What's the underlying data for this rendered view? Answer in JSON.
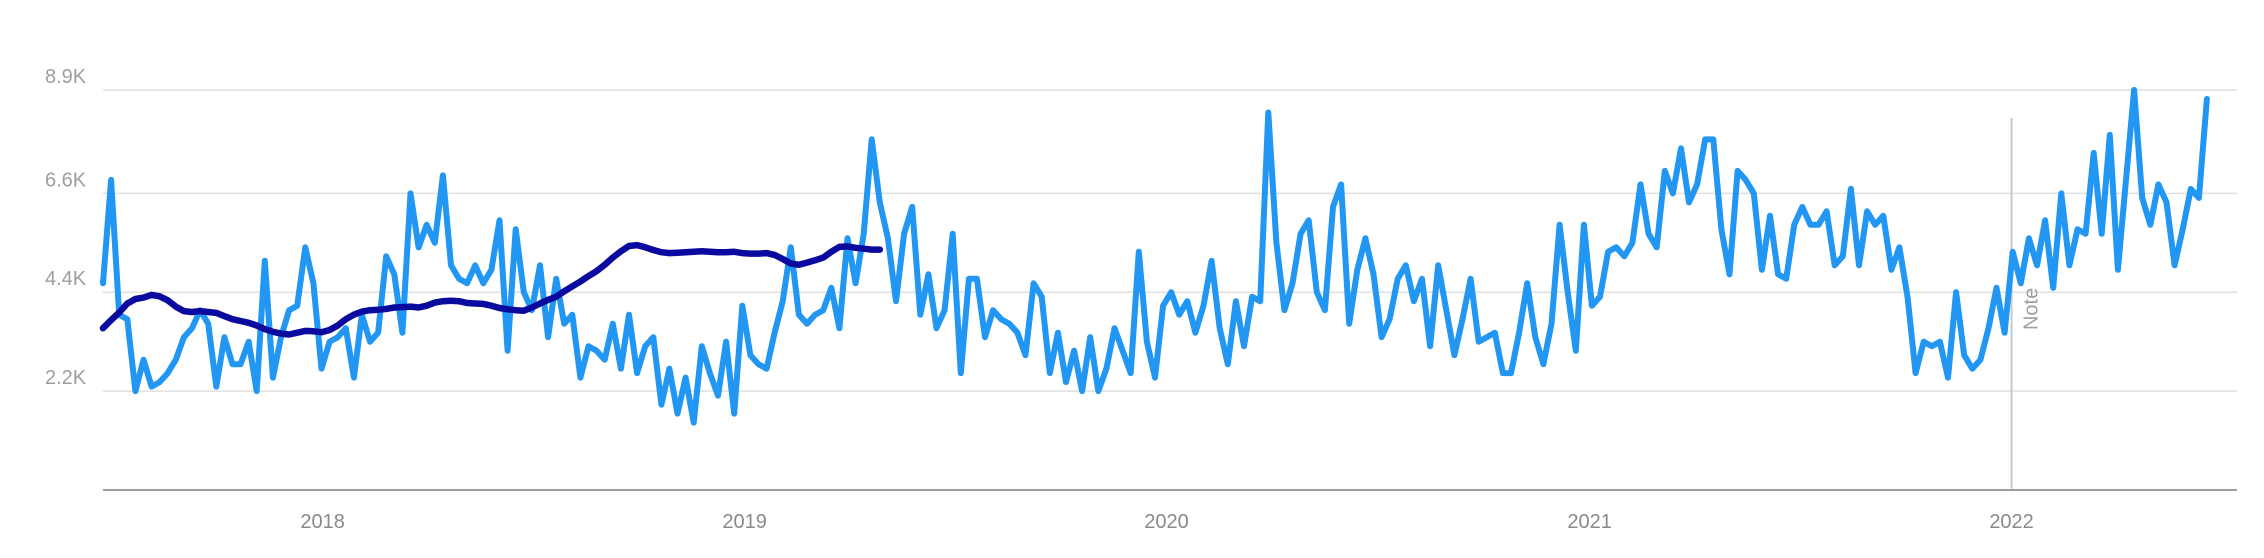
{
  "chart_data": {
    "type": "line",
    "title": "",
    "xlabel": "",
    "ylabel": "",
    "ylim": [
      0,
      8900
    ],
    "xlim": [
      "2017-06-25",
      "2022-07-15"
    ],
    "y_ticks": [
      {
        "value": 2200,
        "label": "2.2K"
      },
      {
        "value": 4400,
        "label": "4.4K"
      },
      {
        "value": 6600,
        "label": "6.6K"
      },
      {
        "value": 8900,
        "label": "8.9K"
      }
    ],
    "x_ticks": [
      {
        "date": "2018-01-01",
        "label": "2018"
      },
      {
        "date": "2019-01-01",
        "label": "2019"
      },
      {
        "date": "2020-01-01",
        "label": "2020"
      },
      {
        "date": "2021-01-01",
        "label": "2021"
      },
      {
        "date": "2022-01-01",
        "label": "2022"
      }
    ],
    "grid": true,
    "annotation": {
      "date": "2022-01-01",
      "label": "Note"
    },
    "colors": {
      "weekly": "#2196f3",
      "trend": "#0a0a9f",
      "grid": "#e0e0e0",
      "axis": "#9e9e9e"
    },
    "series": [
      {
        "color": "#2196f3",
        "start_date": "2017-06-25",
        "interval_days": 7,
        "values": [
          4600,
          6900,
          3900,
          3800,
          2200,
          2900,
          2300,
          2400,
          2600,
          2900,
          3400,
          3600,
          4000,
          3700,
          2300,
          3400,
          2800,
          2800,
          3300,
          2200,
          5100,
          2500,
          3400,
          4000,
          4100,
          5400,
          4600,
          2700,
          3300,
          3400,
          3600,
          2500,
          3900,
          3300,
          3500,
          5200,
          4800,
          3500,
          6600,
          5400,
          5900,
          5500,
          7000,
          5000,
          4700,
          4600,
          5000,
          4600,
          4900,
          6000,
          3100,
          5800,
          4400,
          4000,
          5000,
          3400,
          4700,
          3700,
          3900,
          2500,
          3200,
          3100,
          2900,
          3700,
          2700,
          3900,
          2600,
          3200,
          3400,
          1900,
          2700,
          1700,
          2500,
          1500,
          3200,
          2600,
          2100,
          3300,
          1700,
          4100,
          3000,
          2800,
          2700,
          3500,
          4200,
          5400,
          3900,
          3700,
          3900,
          4000,
          4500,
          3600,
          5600,
          4600,
          5700,
          7800,
          6400,
          5600,
          4200,
          5700,
          6300,
          3900,
          4800,
          3600,
          4000,
          5700,
          2600,
          4700,
          4700,
          3400,
          4000,
          3800,
          3700,
          3500,
          3000,
          4600,
          4300,
          2600,
          3500,
          2400,
          3100,
          2200,
          3400,
          2200,
          2700,
          3600,
          3100,
          2600,
          5300,
          3300,
          2500,
          4100,
          4400,
          3900,
          4200,
          3500,
          4100,
          5100,
          3600,
          2800,
          4200,
          3200,
          4300,
          4200,
          8400,
          5500,
          4000,
          4600,
          5700,
          6000,
          4400,
          4000,
          6300,
          6800,
          3700,
          4900,
          5600,
          4800,
          3400,
          3800,
          4700,
          5000,
          4200,
          4700,
          3200,
          5000,
          4000,
          3000,
          3800,
          4700,
          3300,
          3400,
          3500,
          2600,
          2600,
          3500,
          4600,
          3400,
          2800,
          3700,
          5900,
          4400,
          3100,
          5900,
          4100,
          4300,
          5300,
          5400,
          5200,
          5500,
          6800,
          5700,
          5400,
          7100,
          6600,
          7600,
          6400,
          6800,
          7800,
          7800,
          5800,
          4800,
          7100,
          6900,
          6600,
          4900,
          6100,
          4800,
          4700,
          5900,
          6300,
          5900,
          5900,
          6200,
          5000,
          5200,
          6700,
          5000,
          6200,
          5900,
          6100,
          4900,
          5400,
          4300,
          2600,
          3300,
          3200,
          3300,
          2500,
          4400,
          3000,
          2700,
          2900,
          3600,
          4500,
          3500,
          5300,
          4600,
          5600,
          5000,
          6000,
          4500,
          6600,
          5000,
          5800,
          5700,
          7500,
          5700,
          7900,
          4900,
          6900,
          8900,
          6500,
          5900,
          6800,
          6400,
          5000,
          5800,
          6700,
          6500,
          8700
        ]
      },
      {
        "color": "#0a0a9f",
        "start_date": "2017-06-25",
        "interval_days": 7,
        "values": [
          3600,
          3780,
          3950,
          4150,
          4250,
          4280,
          4340,
          4310,
          4220,
          4080,
          3980,
          3960,
          3980,
          3960,
          3940,
          3870,
          3800,
          3760,
          3720,
          3660,
          3580,
          3520,
          3480,
          3460,
          3500,
          3540,
          3530,
          3510,
          3560,
          3660,
          3800,
          3900,
          3970,
          4000,
          4010,
          4030,
          4060,
          4070,
          4080,
          4060,
          4100,
          4170,
          4200,
          4210,
          4200,
          4160,
          4150,
          4140,
          4100,
          4050,
          4020,
          4000,
          3990,
          4060,
          4150,
          4230,
          4300,
          4420,
          4530,
          4640,
          4760,
          4870,
          5010,
          5170,
          5310,
          5430,
          5450,
          5400,
          5340,
          5290,
          5270,
          5280,
          5290,
          5300,
          5310,
          5300,
          5290,
          5290,
          5300,
          5270,
          5260,
          5260,
          5270,
          5230,
          5140,
          5040,
          5010,
          5060,
          5110,
          5170,
          5300,
          5410,
          5420,
          5390,
          5370,
          5350,
          5350
        ]
      }
    ]
  }
}
